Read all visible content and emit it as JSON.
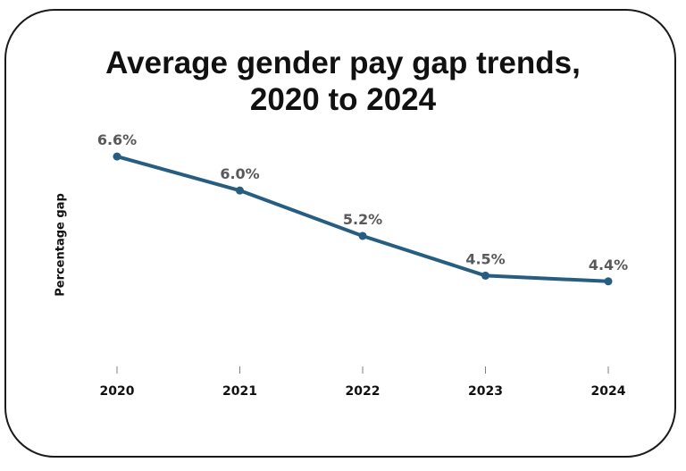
{
  "chart_data": {
    "type": "line",
    "title_lines": [
      "Average gender pay gap trends,",
      "2020 to 2024"
    ],
    "ylabel": "Percentage gap",
    "xlabel": "",
    "categories": [
      "2020",
      "2021",
      "2022",
      "2023",
      "2024"
    ],
    "values": [
      6.6,
      6.0,
      5.2,
      4.5,
      4.4
    ],
    "data_labels": [
      "6.6%",
      "6.0%",
      "5.2%",
      "4.5%",
      "4.4%"
    ],
    "ylim": [
      2.9,
      7.2
    ],
    "grid": false,
    "legend": "none",
    "line_color": "#265d80"
  }
}
